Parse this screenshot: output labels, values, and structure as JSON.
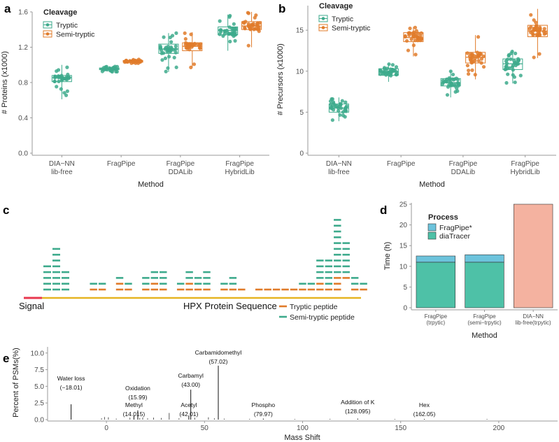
{
  "colors": {
    "tryptic": "#3daa8c",
    "semi": "#e07b2a",
    "fragpipe_star": "#6cc3dc",
    "diatracer": "#4ec1a7",
    "diann": "#f4b2a0",
    "signal": "#e8384f",
    "sequence": "#e6b422",
    "axis": "#9a9a9a",
    "grid": "#ebebeb"
  },
  "panel_labels": {
    "a": "a",
    "b": "b",
    "c": "c",
    "d": "d",
    "e": "e"
  },
  "chart_data": [
    {
      "id": "a",
      "type": "box",
      "ylabel": "# Proteins (x1000)",
      "xlabel": "Method",
      "ylim": [
        0,
        1.6
      ],
      "yticks": [
        "0.0",
        "0.4",
        "0.8",
        "1.2",
        "1.6"
      ],
      "categories": [
        "DIA−NN\nlib-free",
        "FragPipe",
        "FragPipe\nDDALib",
        "FragPipe\nHybridLib"
      ],
      "legend_title": "Cleavage",
      "series": [
        {
          "name": "Tryptic",
          "color_key": "tryptic",
          "stats": [
            [
              0.61,
              0.81,
              0.855,
              0.88,
              1.0
            ],
            [
              0.92,
              0.945,
              0.955,
              0.965,
              0.985
            ],
            [
              0.92,
              1.13,
              1.18,
              1.235,
              1.36
            ],
            [
              1.16,
              1.34,
              1.39,
              1.43,
              1.57
            ]
          ]
        },
        {
          "name": "Semi-tryptic",
          "color_key": "semi",
          "stats": [
            null,
            [
              1.01,
              1.03,
              1.04,
              1.05,
              1.07
            ],
            [
              0.97,
              1.16,
              1.21,
              1.25,
              1.37
            ],
            [
              1.2,
              1.4,
              1.44,
              1.49,
              1.6
            ]
          ]
        }
      ]
    },
    {
      "id": "b",
      "type": "box",
      "ylabel": "# Precursors (x1000)",
      "xlabel": "Method",
      "ylim": [
        0,
        18
      ],
      "yticks": [
        "0",
        "5",
        "10",
        "15"
      ],
      "categories": [
        "DIA−NN\nlib-free",
        "FragPipe",
        "FragPipe\nDDALib",
        "FragPipe\nHybridLib"
      ],
      "legend_title": "Cleavage",
      "series": [
        {
          "name": "Tryptic",
          "color_key": "tryptic",
          "stats": [
            [
              3.9,
              5.0,
              5.5,
              6.0,
              6.8
            ],
            [
              8.7,
              9.5,
              9.9,
              10.3,
              10.9
            ],
            [
              6.8,
              8.2,
              8.6,
              9.1,
              10.0
            ],
            [
              8.5,
              10.2,
              10.9,
              11.5,
              12.6
            ]
          ]
        },
        {
          "name": "Semi-tryptic",
          "color_key": "semi",
          "stats": [
            null,
            [
              11.8,
              13.6,
              14.1,
              14.7,
              15.4
            ],
            [
              9.0,
              11.0,
              11.7,
              12.3,
              14.4
            ],
            [
              11.6,
              14.2,
              14.9,
              15.6,
              17.6
            ]
          ]
        }
      ]
    },
    {
      "id": "c",
      "type": "peptide-coverage",
      "signal_label": "Signal",
      "sequence_label": "HPX Protein Sequence",
      "legend": [
        {
          "name": "Tryptic peptide",
          "color_key": "semi"
        },
        {
          "name": "Semi-tryptic peptide",
          "color_key": "tryptic"
        }
      ],
      "tryptic_rows": [
        [
          0,
          1,
          1,
          0,
          1,
          1,
          0,
          1,
          1,
          1,
          0,
          1,
          1,
          1,
          1,
          0,
          1,
          1,
          1,
          0,
          1,
          1,
          1,
          1,
          1,
          1,
          1,
          1,
          1,
          1,
          0,
          1,
          1
        ],
        [
          0,
          0,
          0,
          0,
          1,
          0,
          0,
          0,
          1,
          0,
          0,
          0,
          1,
          0,
          0,
          0,
          0,
          0,
          0,
          0,
          0,
          0,
          0,
          0,
          0,
          0,
          0,
          1,
          0,
          1,
          0,
          0,
          0
        ],
        [
          0,
          0,
          0,
          0,
          0,
          0,
          0,
          0,
          0,
          0,
          0,
          0,
          0,
          0,
          0,
          0,
          0,
          0,
          0,
          0,
          0,
          0,
          0,
          0,
          0,
          0,
          0,
          0,
          0,
          1,
          1,
          0,
          0
        ]
      ],
      "semi_counts": [
        0,
        1,
        1,
        0,
        1,
        1,
        0,
        2,
        2,
        3,
        0,
        1,
        2,
        2,
        3,
        0,
        1,
        2,
        0,
        0,
        0,
        0,
        0,
        0,
        0,
        1,
        1,
        4,
        5,
        10,
        6,
        2,
        1
      ],
      "semi_offsets": [
        0,
        0,
        0,
        0,
        0,
        0,
        0,
        1,
        1,
        1,
        0,
        0,
        1,
        1,
        1,
        0,
        1,
        1,
        0,
        0,
        0,
        0,
        0,
        0,
        0,
        0,
        0,
        1,
        1,
        2,
        1,
        0,
        0
      ]
    },
    {
      "id": "d",
      "type": "stacked-bar",
      "ylabel": "Time (h)",
      "xlabel": "Method",
      "ylim": [
        0,
        25
      ],
      "yticks": [
        "0",
        "5",
        "10",
        "15",
        "20",
        "25"
      ],
      "categories": [
        "FragPipe\n(trpytic)",
        "FragPipe\n(semi−trpytic)",
        "DIA−NN\nlib-free(trpytic)"
      ],
      "legend_title": "Process",
      "series": [
        {
          "name": "diaTracer",
          "color_key": "diatracer",
          "values": [
            11.0,
            11.0,
            0
          ]
        },
        {
          "name": "FragPipe*",
          "color_key": "fragpipe_star",
          "values": [
            1.5,
            1.8,
            0
          ]
        },
        {
          "name": "DIA-NN",
          "color_key": "diann",
          "values": [
            0,
            0,
            25.0
          ],
          "in_legend": false
        }
      ]
    },
    {
      "id": "e",
      "type": "spectrum",
      "ylabel": "Percent of PSMs(%)",
      "xlabel": "Mass Shift",
      "xlim": [
        -30,
        230
      ],
      "ylim": [
        0,
        10.5
      ],
      "xticks": [
        0,
        50,
        100,
        150,
        200
      ],
      "yticks": [
        "0.0",
        "2.5",
        "5.0",
        "7.5",
        "10.0"
      ],
      "peaks": [
        {
          "x": -18.01,
          "y": 2.3,
          "name": "Water loss",
          "value": "(−18.01)"
        },
        {
          "x": 15.99,
          "y": 1.4,
          "name": "Oxidation",
          "value": "(15.99)"
        },
        {
          "x": 14.015,
          "y": 0.6,
          "name": "Methyl",
          "value": "(14.015)"
        },
        {
          "x": 43.0,
          "y": 4.5,
          "name": "Carbamyl",
          "value": "(43.00)"
        },
        {
          "x": 42.01,
          "y": 0.6,
          "name": "Acetyl",
          "value": "(42.01)"
        },
        {
          "x": 57.02,
          "y": 8.1,
          "name": "Carbamidomethyl",
          "value": "(57.02)"
        },
        {
          "x": 79.97,
          "y": 0.15,
          "name": "Phospho",
          "value": "(79.97)"
        },
        {
          "x": 128.095,
          "y": 0.15,
          "name": "Addition of K",
          "value": "(128.095)"
        },
        {
          "x": 162.05,
          "y": 0.1,
          "name": "Hex",
          "value": "(162.05)"
        }
      ],
      "minor_peaks": [
        [
          -1,
          0.4
        ],
        [
          1,
          0.35
        ],
        [
          -2.5,
          0.2
        ],
        [
          5,
          0.15
        ],
        [
          12,
          0.3
        ],
        [
          17,
          0.25
        ],
        [
          18.5,
          0.3
        ],
        [
          21,
          0.2
        ],
        [
          24,
          0.3
        ],
        [
          28,
          0.25
        ],
        [
          32,
          1.0
        ],
        [
          37,
          0.2
        ],
        [
          45,
          0.3
        ],
        [
          52,
          0.35
        ],
        [
          55,
          0.2
        ],
        [
          60,
          0.15
        ],
        [
          73,
          0.12
        ],
        [
          96,
          0.1
        ],
        [
          114,
          0.12
        ],
        [
          147,
          0.1
        ],
        [
          194,
          0.1
        ]
      ]
    }
  ]
}
